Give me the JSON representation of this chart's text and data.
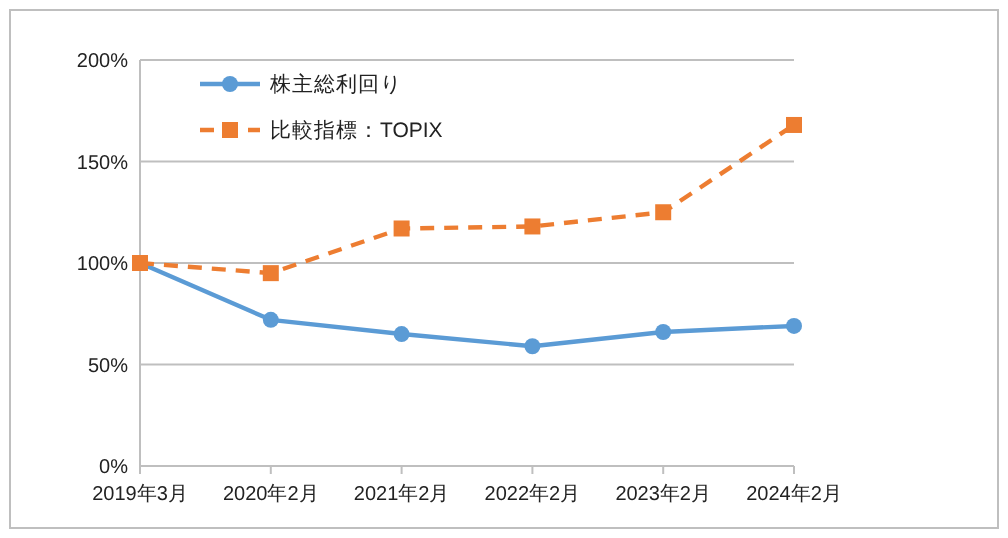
{
  "chart_data": {
    "type": "line",
    "categories": [
      "2019年3月",
      "2020年2月",
      "2021年2月",
      "2022年2月",
      "2023年2月",
      "2024年2月"
    ],
    "series": [
      {
        "name": "株主総利回り",
        "color": "#5b9bd5",
        "marker": "circle",
        "line_style": "solid",
        "values": [
          100,
          72,
          65,
          59,
          66,
          69
        ]
      },
      {
        "name": "比較指標：TOPIX",
        "color": "#ed7d31",
        "marker": "square",
        "line_style": "dashed",
        "values": [
          100,
          95,
          117,
          118,
          125,
          168
        ]
      }
    ],
    "ylim": [
      0,
      200
    ],
    "yticks": [
      {
        "value": 0,
        "label": "0%"
      },
      {
        "value": 50,
        "label": "50%"
      },
      {
        "value": 100,
        "label": "100%"
      },
      {
        "value": 150,
        "label": "150%"
      },
      {
        "value": 200,
        "label": "200%"
      }
    ],
    "grid": "y",
    "legend": "top left"
  }
}
